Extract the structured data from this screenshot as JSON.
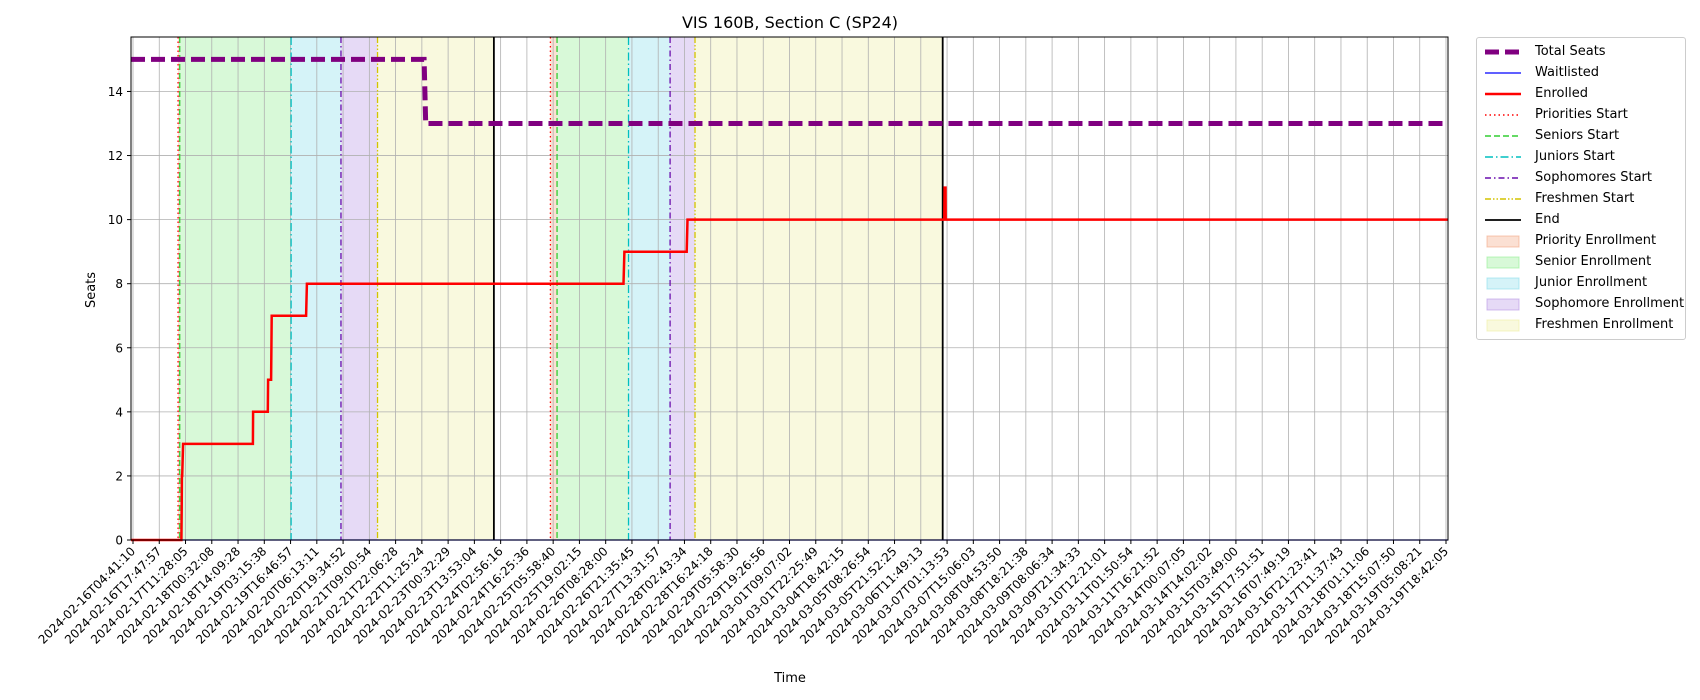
{
  "chart_data": {
    "type": "line",
    "title": "VIS 160B, Section C (SP24)",
    "xlabel": "Time",
    "ylabel": "Seats",
    "ylim": [
      0,
      15.7
    ],
    "yticks": [
      0,
      2,
      4,
      6,
      8,
      10,
      12,
      14
    ],
    "xlim": [
      "2024-02-16T04:41:10",
      "2024-03-20T05:00:00"
    ],
    "grid": true,
    "legend_position": "outside-right",
    "xtick_labels": [
      "2024-02-16T04:41:10",
      "2024-02-16T17:47:57",
      "2024-02-17T11:28:05",
      "2024-02-18T00:32:08",
      "2024-02-18T14:09:28",
      "2024-02-19T03:15:38",
      "2024-02-19T16:46:57",
      "2024-02-20T06:13:11",
      "2024-02-20T19:34:52",
      "2024-02-21T09:00:54",
      "2024-02-21T22:06:28",
      "2024-02-22T11:25:24",
      "2024-02-23T00:32:29",
      "2024-02-23T13:53:04",
      "2024-02-24T02:56:16",
      "2024-02-24T16:25:36",
      "2024-02-25T05:58:40",
      "2024-02-25T19:02:15",
      "2024-02-26T08:28:00",
      "2024-02-26T21:35:45",
      "2024-02-27T13:31:57",
      "2024-02-28T02:43:34",
      "2024-02-28T16:24:18",
      "2024-02-29T05:58:30",
      "2024-02-29T19:26:56",
      "2024-03-01T09:07:02",
      "2024-03-01T22:25:49",
      "2024-03-04T18:42:15",
      "2024-03-05T08:26:54",
      "2024-03-05T21:52:25",
      "2024-03-06T11:49:13",
      "2024-03-07T01:13:53",
      "2024-03-07T15:06:03",
      "2024-03-08T04:53:50",
      "2024-03-08T18:21:38",
      "2024-03-09T08:06:34",
      "2024-03-09T21:34:33",
      "2024-03-10T12:21:01",
      "2024-03-11T01:50:54",
      "2024-03-11T16:21:52",
      "2024-03-14T00:07:05",
      "2024-03-14T14:02:02",
      "2024-03-15T03:49:00",
      "2024-03-15T17:51:51",
      "2024-03-16T07:49:19",
      "2024-03-16T21:23:41",
      "2024-03-17T11:37:43",
      "2024-03-18T01:11:06",
      "2024-03-18T15:07:50",
      "2024-03-19T05:08:21",
      "2024-03-19T18:42:05"
    ],
    "series": [
      {
        "name": "Total Seats",
        "color": "#800080",
        "style": "dashed-thick",
        "x": [
          "2024-02-16T04:41:10",
          "2024-02-23T13:00:00",
          "2024-02-23T14:00:00",
          "2024-03-20T05:00:00"
        ],
        "y": [
          15,
          15,
          13,
          13
        ]
      },
      {
        "name": "Waitlisted",
        "color": "#0000ff",
        "style": "solid-thin",
        "x": [
          "2024-02-16T04:41:10",
          "2024-03-20T05:00:00"
        ],
        "y": [
          0,
          0
        ]
      },
      {
        "name": "Enrolled",
        "color": "#ff0000",
        "style": "solid-thick",
        "x": [
          "2024-02-16T04:41:10",
          "2024-02-17T11:00:00",
          "2024-02-17T11:10:00",
          "2024-02-17T11:20:00",
          "2024-02-17T11:30:00",
          "2024-02-17T12:00:00",
          "2024-02-17T13:00:00",
          "2024-02-19T06:00:00",
          "2024-02-19T06:10:00",
          "2024-02-19T15:00:00",
          "2024-02-19T15:10:00",
          "2024-02-19T17:00:00",
          "2024-02-19T17:20:00",
          "2024-02-20T14:00:00",
          "2024-02-20T14:30:00",
          "2024-02-28T13:00:00",
          "2024-02-28T13:30:00",
          "2024-03-01T03:00:00",
          "2024-03-01T03:30:00",
          "2024-03-07T14:00:00",
          "2024-03-07T14:10:00",
          "2024-03-07T14:40:00",
          "2024-03-07T14:50:00",
          "2024-03-20T05:00:00"
        ],
        "y": [
          0,
          0,
          1,
          2,
          2,
          3,
          3,
          3,
          4,
          4,
          5,
          5,
          7,
          7,
          8,
          8,
          9,
          9,
          10,
          10,
          11,
          11,
          10,
          10
        ]
      }
    ],
    "markers": [
      {
        "name": "Priorities Start",
        "color": "#ff0000",
        "style": "dotted",
        "x": [
          "2024-02-17T09:00:00",
          "2024-02-26T17:00:00"
        ]
      },
      {
        "name": "Seniors Start",
        "color": "#32cd32",
        "style": "dashed",
        "x": [
          "2024-02-17T10:00:00",
          "2024-02-26T21:00:00"
        ]
      },
      {
        "name": "Juniors Start",
        "color": "#00bfbf",
        "style": "dashdot",
        "x": [
          "2024-02-20T05:00:00",
          "2024-02-28T16:00:00"
        ]
      },
      {
        "name": "Sophomores Start",
        "color": "#6a0dad",
        "style": "densedashdot",
        "x": [
          "2024-02-21T11:00:00",
          "2024-02-29T17:00:00"
        ]
      },
      {
        "name": "Freshmen Start",
        "color": "#d4c400",
        "style": "dashdotdot",
        "x": [
          "2024-02-22T09:00:00",
          "2024-03-01T08:00:00"
        ]
      },
      {
        "name": "End",
        "color": "#000000",
        "style": "solid",
        "x": [
          "2024-02-25T07:00:00",
          "2024-03-07T13:00:00"
        ]
      }
    ],
    "spans": [
      {
        "name": "Priority Enrollment",
        "color": "#f4a582",
        "ranges": [
          [
            "2024-02-17T09:00:00",
            "2024-02-17T10:00:00"
          ],
          [
            "2024-02-26T17:00:00",
            "2024-02-26T21:00:00"
          ]
        ]
      },
      {
        "name": "Senior Enrollment",
        "color": "#90ee90",
        "ranges": [
          [
            "2024-02-17T10:00:00",
            "2024-02-20T05:00:00"
          ],
          [
            "2024-02-26T21:00:00",
            "2024-02-28T16:00:00"
          ]
        ]
      },
      {
        "name": "Junior Enrollment",
        "color": "#87ddeb",
        "ranges": [
          [
            "2024-02-20T05:00:00",
            "2024-02-21T11:00:00"
          ],
          [
            "2024-02-28T16:00:00",
            "2024-02-29T17:00:00"
          ]
        ]
      },
      {
        "name": "Sophomore Enrollment",
        "color": "#b695e5",
        "ranges": [
          [
            "2024-02-21T11:00:00",
            "2024-02-22T09:00:00"
          ],
          [
            "2024-02-29T17:00:00",
            "2024-03-01T08:00:00"
          ]
        ]
      },
      {
        "name": "Freshmen Enrollment",
        "color": "#ededa0",
        "ranges": [
          [
            "2024-02-22T09:00:00",
            "2024-02-25T07:00:00"
          ],
          [
            "2024-03-01T08:00:00",
            "2024-03-07T13:00:00"
          ]
        ]
      }
    ]
  }
}
